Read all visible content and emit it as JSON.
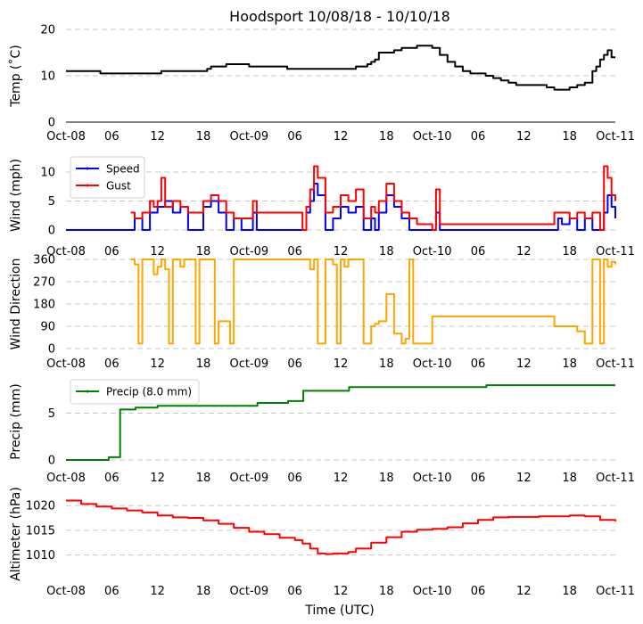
{
  "chart_data": {
    "title": "Hoodsport 10/08/18 - 10/10/18",
    "xlabel": "Time (UTC)",
    "x_tick_labels": [
      "Oct-08",
      "06",
      "12",
      "18",
      "Oct-09",
      "06",
      "12",
      "18",
      "Oct-10",
      "06",
      "12",
      "18",
      "Oct-11"
    ],
    "x_range_hours": [
      0,
      72
    ],
    "panels": [
      {
        "type": "line",
        "ylabel": "Temp (˚C)",
        "ylim": [
          0,
          20
        ],
        "yticks": [
          0,
          10,
          20
        ],
        "grid": true,
        "axis_line": true,
        "legend": null,
        "series": [
          {
            "name": "Temp",
            "color": "#000000",
            "x": [
              0,
              0.5,
              4,
              4.5,
              12,
              12.5,
              18,
              18.5,
              19,
              20,
              21,
              22,
              23,
              24,
              27,
              28,
              29,
              30,
              34,
              35,
              36,
              37,
              38,
              39,
              39.5,
              40,
              40.5,
              41,
              42,
              43,
              44,
              45,
              46,
              47,
              48,
              49,
              50,
              51,
              52,
              53,
              54,
              55,
              56,
              57,
              58,
              59,
              60,
              61,
              62,
              63,
              64,
              65,
              66,
              67,
              68,
              69,
              69.5,
              70,
              70.5,
              71,
              71.5,
              72
            ],
            "y": [
              11,
              11,
              11,
              10.5,
              10.5,
              11,
              11,
              11.5,
              12,
              12,
              12.5,
              12.5,
              12.5,
              12,
              12,
              12,
              11.5,
              11.5,
              11.5,
              11.5,
              11.5,
              11.5,
              12,
              12,
              12.5,
              13,
              13.5,
              15,
              15,
              15.5,
              16,
              16,
              16.5,
              16.5,
              16,
              14.5,
              13,
              12,
              11,
              10.5,
              10.5,
              10,
              9.5,
              9,
              8.5,
              8,
              8,
              8,
              8,
              7.5,
              7,
              7,
              7.5,
              8,
              8.5,
              11,
              12,
              13.5,
              14.5,
              15.5,
              14,
              14
            ]
          }
        ]
      },
      {
        "type": "line",
        "ylabel": "Wind (mph)",
        "ylim": [
          0,
          12
        ],
        "yticks": [
          0,
          5,
          10
        ],
        "grid": true,
        "axis_line": false,
        "legend": "top-left",
        "series": [
          {
            "name": "Speed",
            "color": "#0000ff",
            "x": [
              0,
              8.5,
              9,
              10,
              11,
              12,
              13,
              14,
              15,
              16,
              17,
              18,
              19,
              20,
              21,
              22,
              23,
              24,
              24.5,
              25,
              26,
              27,
              28,
              29,
              30,
              31,
              31.5,
              32,
              32.5,
              33,
              34,
              35,
              36,
              37,
              38,
              39,
              40,
              40.5,
              41,
              42,
              43,
              44,
              45,
              46,
              47,
              48,
              48.5,
              49,
              50,
              55,
              60,
              64,
              64.5,
              65,
              66,
              67,
              68,
              69,
              70,
              70.5,
              71,
              71.5,
              72
            ],
            "y": [
              0,
              0,
              2,
              0,
              3,
              4,
              5,
              3,
              4,
              0,
              0,
              4,
              5,
              3,
              0,
              2,
              0,
              0,
              3,
              0,
              0,
              0,
              0,
              0,
              0,
              0,
              3,
              5,
              8,
              6,
              0,
              2,
              4,
              3,
              4,
              0,
              2,
              0,
              3,
              6,
              4,
              2,
              0,
              0,
              0,
              0,
              3,
              0,
              0,
              0,
              0,
              0,
              2,
              1,
              2,
              0,
              2,
              0,
              0,
              3,
              6,
              4,
              2
            ]
          },
          {
            "name": "Gust",
            "color": "#ff0000",
            "x": [
              8.5,
              9,
              10,
              11,
              11.5,
              12,
              12.5,
              13,
              14,
              15,
              16,
              17,
              18,
              19,
              20,
              21,
              22,
              24,
              24.5,
              25,
              31,
              31.5,
              32,
              32.5,
              33,
              34,
              35,
              36,
              37,
              38,
              39,
              40,
              40.5,
              41,
              42,
              43,
              44,
              45,
              46,
              48,
              48.5,
              49,
              64,
              65,
              66,
              67,
              68,
              69,
              70,
              70.5,
              71,
              71.5,
              72
            ],
            "y": [
              3,
              2,
              3,
              5,
              4,
              5,
              9,
              4,
              5,
              4,
              3,
              3,
              5,
              6,
              5,
              3,
              2,
              2,
              5,
              3,
              0,
              4,
              7,
              11,
              9,
              3,
              4,
              6,
              5,
              7,
              2,
              4,
              3,
              5,
              8,
              5,
              3,
              2,
              1,
              0,
              7,
              1,
              3,
              3,
              2,
              3,
              2,
              3,
              0,
              11,
              9,
              6,
              5
            ]
          }
        ]
      },
      {
        "type": "line",
        "ylabel": "Wind Direction",
        "ylim": [
          0,
          360
        ],
        "yticks": [
          0,
          90,
          180,
          270,
          360
        ],
        "grid": true,
        "axis_line": false,
        "legend": null,
        "series": [
          {
            "name": "Direction",
            "color": "#ffa500",
            "x": [
              8.5,
              9,
              9.5,
              10,
              11,
              11.5,
              12,
              12.5,
              13,
              13.5,
              14,
              15,
              15.5,
              16,
              17,
              17.5,
              18,
              19,
              19.5,
              20,
              21,
              21.5,
              22,
              23,
              24,
              25,
              31,
              31.5,
              32,
              32.5,
              33,
              34,
              35,
              35.5,
              36,
              36.5,
              37,
              38,
              39,
              40,
              40.5,
              41,
              42,
              43,
              44,
              44.5,
              45,
              45.5,
              46,
              48,
              64,
              65,
              66,
              67,
              68,
              69,
              70,
              70.5,
              71,
              71.5,
              72
            ],
            "y": [
              360,
              340,
              20,
              360,
              360,
              300,
              330,
              360,
              320,
              20,
              360,
              330,
              360,
              360,
              20,
              360,
              360,
              360,
              20,
              110,
              110,
              20,
              360,
              360,
              360,
              360,
              360,
              360,
              320,
              360,
              20,
              360,
              340,
              20,
              360,
              330,
              360,
              360,
              20,
              90,
              100,
              110,
              220,
              60,
              20,
              40,
              360,
              20,
              20,
              130,
              90,
              90,
              90,
              70,
              20,
              360,
              20,
              360,
              330,
              350,
              340
            ]
          }
        ]
      },
      {
        "type": "line",
        "ylabel": "Precip (mm)",
        "ylim": [
          0,
          8.2
        ],
        "yticks": [
          0,
          5
        ],
        "grid": true,
        "axis_line": false,
        "legend": "top-left",
        "series": [
          {
            "name": "Precip (8.0 mm)",
            "color": "#008000",
            "x": [
              0,
              5.5,
              5.6,
              7,
              7.1,
              9,
              9.1,
              12,
              18,
              24,
              25,
              25.1,
              29,
              29.1,
              31,
              31.1,
              37,
              37.1,
              48,
              55,
              55.1,
              72
            ],
            "y": [
              0,
              0,
              0.3,
              0.3,
              5.4,
              5.4,
              5.6,
              5.8,
              5.8,
              5.8,
              5.8,
              6.1,
              6.1,
              6.3,
              6.3,
              7.4,
              7.4,
              7.8,
              7.8,
              7.8,
              8.0,
              8.0
            ]
          }
        ]
      },
      {
        "type": "line",
        "ylabel": "Altimeter (hPa)",
        "ylim": [
          1006.5,
          1022
        ],
        "yticks": [
          1010,
          1015,
          1020
        ],
        "grid": true,
        "axis_line": false,
        "legend": null,
        "series": [
          {
            "name": "Altimeter",
            "color": "#ff0000",
            "x": [
              0,
              2,
              4,
              6,
              8,
              10,
              12,
              14,
              16,
              18,
              20,
              22,
              24,
              26,
              28,
              30,
              31,
              32,
              33,
              34,
              35,
              36,
              37,
              38,
              40,
              42,
              44,
              46,
              48,
              50,
              52,
              54,
              56,
              58,
              60,
              62,
              64,
              66,
              68,
              70,
              72
            ],
            "y": [
              1021,
              1020.3,
              1019.8,
              1019.4,
              1019,
              1018.6,
              1018,
              1017.6,
              1017.5,
              1017,
              1016.3,
              1015.5,
              1014.7,
              1014.2,
              1013.5,
              1013,
              1012.3,
              1011.3,
              1010.3,
              1010.2,
              1010.3,
              1010.3,
              1010.6,
              1011.3,
              1012.5,
              1013.6,
              1014.7,
              1015.1,
              1015.3,
              1015.6,
              1016.4,
              1017.1,
              1017.6,
              1017.7,
              1017.7,
              1017.8,
              1017.8,
              1018,
              1017.8,
              1017.1,
              1016.8
            ]
          }
        ]
      }
    ]
  }
}
